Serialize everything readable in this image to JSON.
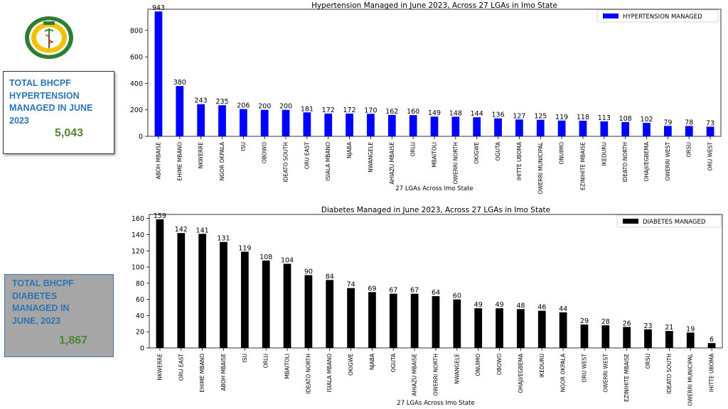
{
  "logo": {
    "icon": "caduceus-seal-icon",
    "text": "IMO STATE HEALTH INSURANCE AGENCY",
    "ring_color": "#2e7d32",
    "fill_color": "#f2c200"
  },
  "cards": [
    {
      "label": "TOTAL BHCPF\nHYPERTENSION\nMANAGED IN JUNE\n2023",
      "value": "5,043"
    },
    {
      "label": "TOTAL BHCPF\nDIABETES\nMANAGED IN\nJUNE, 2023",
      "value": "1,867"
    }
  ],
  "chart_data": [
    {
      "type": "bar",
      "title": "Hypertension Managed in June 2023, Across 27 LGAs in Imo State",
      "xlabel": "27 LGAs Across Imo State",
      "ylabel": "",
      "ylim": [
        0,
        960
      ],
      "yticks": [
        0,
        200,
        400,
        600,
        800
      ],
      "legend": "top-right",
      "color": "#0000ff",
      "categories": [
        "ABOH MBAISE",
        "EHIME MBANO",
        "NKWERRE",
        "NGOR OKPALA",
        "ISU",
        "OBOWO",
        "IDEATO SOUTH",
        "ORU EAST",
        "ISIALA MBANO",
        "NJABA",
        "NWANGELE",
        "AHIAZU MBAISE",
        "ORLU",
        "MBAITOLI",
        "OWERRI NORTH",
        "OKIGWE",
        "OGUTA",
        "IHITTE UBOMA",
        "OWERRI MUNICIPAL",
        "ONUIMO",
        "EZINIHITE MBAISE",
        "IKEDURU",
        "IDEATO NORTH",
        "OHAJI/EGBEMA",
        "OWERRI WEST",
        "ORSU",
        "ORU WEST"
      ],
      "series": [
        {
          "name": "HYPERTENSION MANAGED",
          "values": [
            943,
            380,
            243,
            235,
            206,
            200,
            200,
            181,
            172,
            172,
            170,
            162,
            160,
            149,
            148,
            144,
            136,
            127,
            125,
            119,
            118,
            113,
            108,
            102,
            79,
            78,
            73
          ]
        }
      ]
    },
    {
      "type": "bar",
      "title": "Diabetes Managed in June 2023, Across 27 LGAs in Imo State",
      "xlabel": "27 LGAs Across Imo State",
      "ylabel": "",
      "ylim": [
        0,
        165
      ],
      "yticks": [
        0,
        20,
        40,
        60,
        80,
        100,
        120,
        140,
        160
      ],
      "legend": "top-right",
      "color": "#000000",
      "categories": [
        "NKWERRE",
        "ORU EAST",
        "EHIME MBANO",
        "ABOH MBAISE",
        "ISU",
        "ORLU",
        "MBAITOLI",
        "IDEATO NORTH",
        "ISIALA MBANO",
        "OKIGWE",
        "NJABA",
        "OGUTA",
        "AHIAZU MBAISE",
        "OWERRI NORTH",
        "NWANGELE",
        "ONUIMO",
        "OBOWO",
        "OHAJI/EGBEMA",
        "IKEDURU",
        "NGOR OKPALA",
        "ORU WEST",
        "OWERRI WEST",
        "EZINIHITE MBAISE",
        "ORSU",
        "IDEATO SOUTH",
        "OWERRI MUNICIPAL",
        "IHITTE UBOMA"
      ],
      "series": [
        {
          "name": "DIABETES MANAGED",
          "values": [
            159,
            142,
            141,
            131,
            119,
            108,
            104,
            90,
            84,
            74,
            69,
            67,
            67,
            64,
            60,
            49,
            49,
            48,
            46,
            44,
            29,
            28,
            26,
            23,
            21,
            19,
            6
          ]
        }
      ]
    }
  ]
}
